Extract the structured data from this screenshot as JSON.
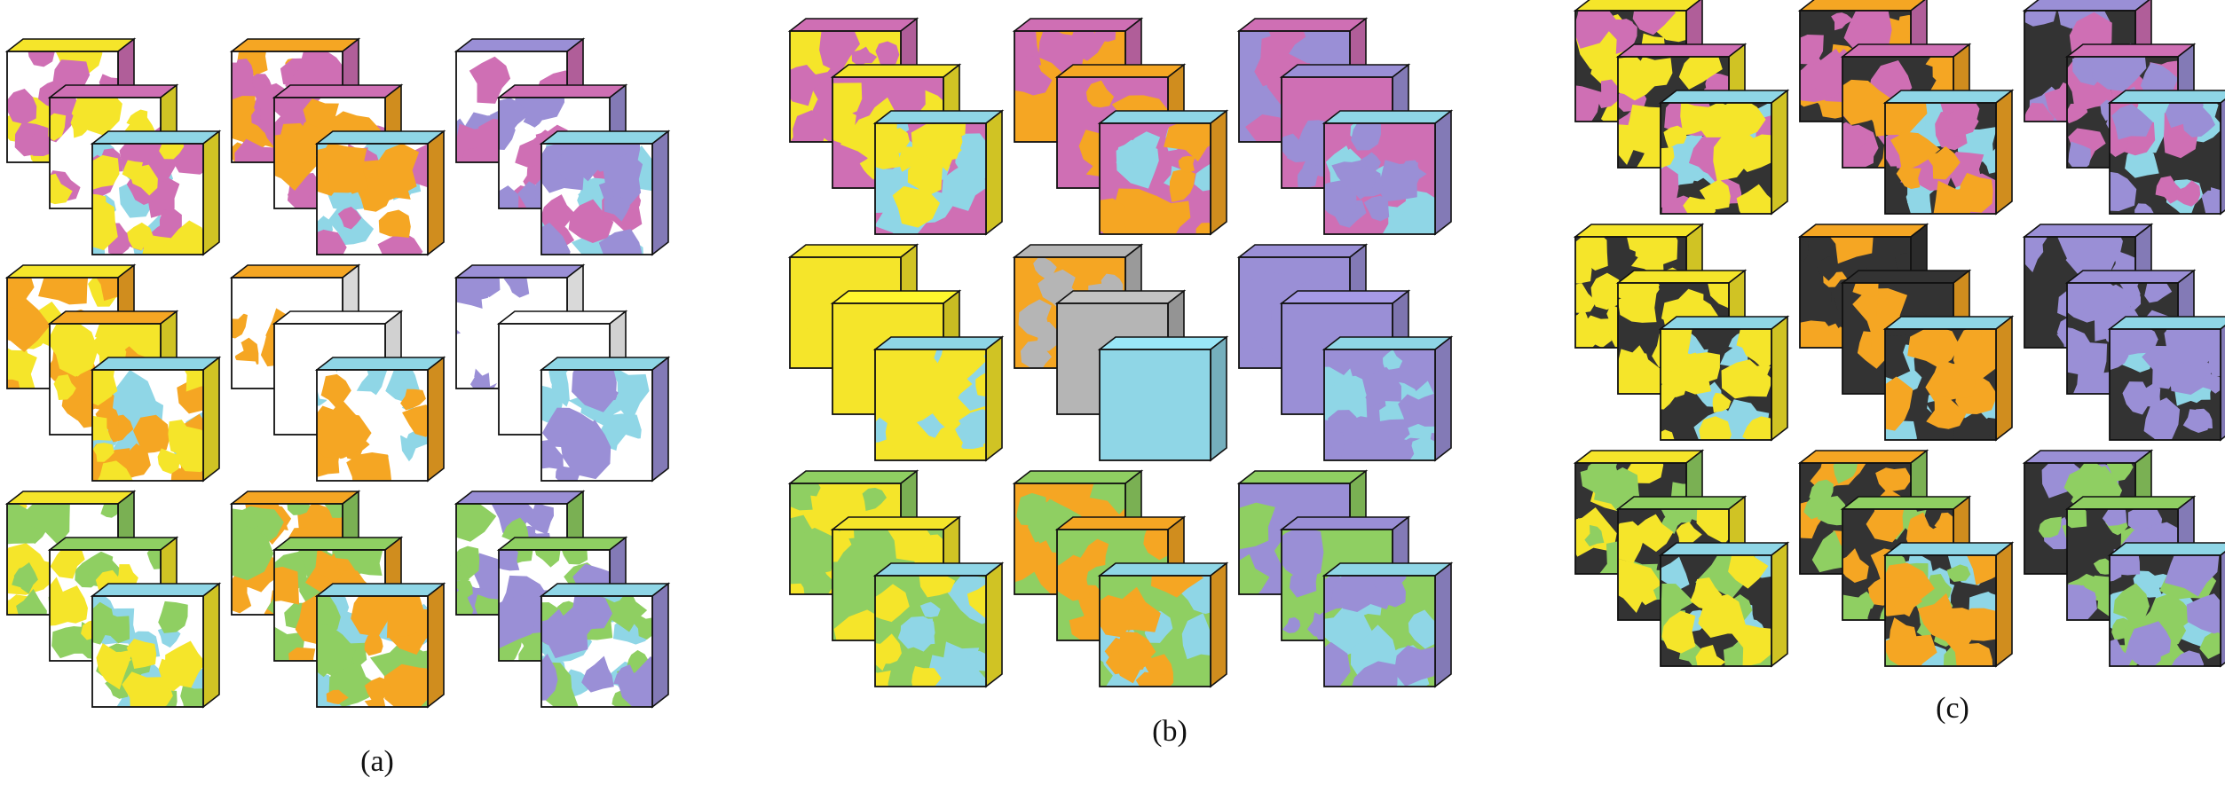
{
  "figure": {
    "panels": [
      {
        "label": "(a)",
        "background": "white",
        "grid": [
          [
            [
              "yellow",
              "magenta"
            ],
            [
              "orange",
              "magenta"
            ],
            [
              "purple",
              "magenta"
            ]
          ],
          [
            [
              "yellow",
              "orange"
            ],
            [
              "orange",
              "white"
            ],
            [
              "purple",
              "white"
            ]
          ],
          [
            [
              "yellow",
              "green"
            ],
            [
              "orange",
              "green"
            ],
            [
              "purple",
              "green"
            ]
          ]
        ]
      },
      {
        "label": "(b)",
        "background": null,
        "grid": [
          [
            [
              "yellow",
              "magenta"
            ],
            [
              "orange",
              "magenta"
            ],
            [
              "purple",
              "magenta"
            ]
          ],
          [
            [
              "yellow",
              "yellow"
            ],
            [
              "orange",
              "gray"
            ],
            [
              "purple",
              "purple"
            ]
          ],
          [
            [
              "yellow",
              "green"
            ],
            [
              "orange",
              "green"
            ],
            [
              "purple",
              "green"
            ]
          ]
        ]
      },
      {
        "label": "(c)",
        "background": "black",
        "grid": [
          [
            [
              "yellow",
              "magenta"
            ],
            [
              "orange",
              "magenta"
            ],
            [
              "purple",
              "magenta"
            ]
          ],
          [
            [
              "yellow",
              "yellow"
            ],
            [
              "orange",
              "black"
            ],
            [
              "purple",
              "purple"
            ]
          ],
          [
            [
              "yellow",
              "green"
            ],
            [
              "orange",
              "green"
            ],
            [
              "purple",
              "green"
            ]
          ]
        ]
      }
    ],
    "colors": {
      "yellow": "#f5e52a",
      "orange": "#f5a623",
      "magenta": "#cf6fb4",
      "purple": "#9a8fd6",
      "green": "#8fcf62",
      "cyan": "#8fd6e6",
      "white": "#ffffff",
      "gray": "#b5b5b5",
      "black": "#333333"
    }
  }
}
